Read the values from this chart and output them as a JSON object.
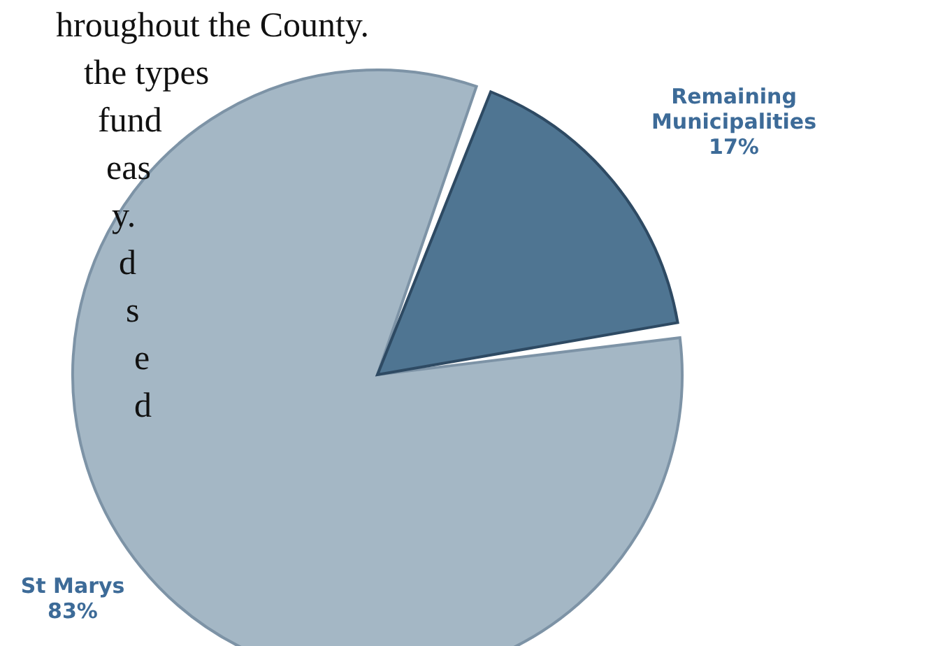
{
  "chart_data": {
    "type": "pie",
    "categories": [
      "St Marys",
      "Remaining Municipalities"
    ],
    "values": [
      83,
      17
    ],
    "colors": [
      "#a4b7c5",
      "#4f7592"
    ],
    "value_labels": [
      "83%",
      "17%"
    ],
    "annotations": [
      "hroughout the County.",
      "the types",
      "fund",
      "eas",
      "y.",
      "d",
      "s",
      "e",
      "d"
    ]
  }
}
